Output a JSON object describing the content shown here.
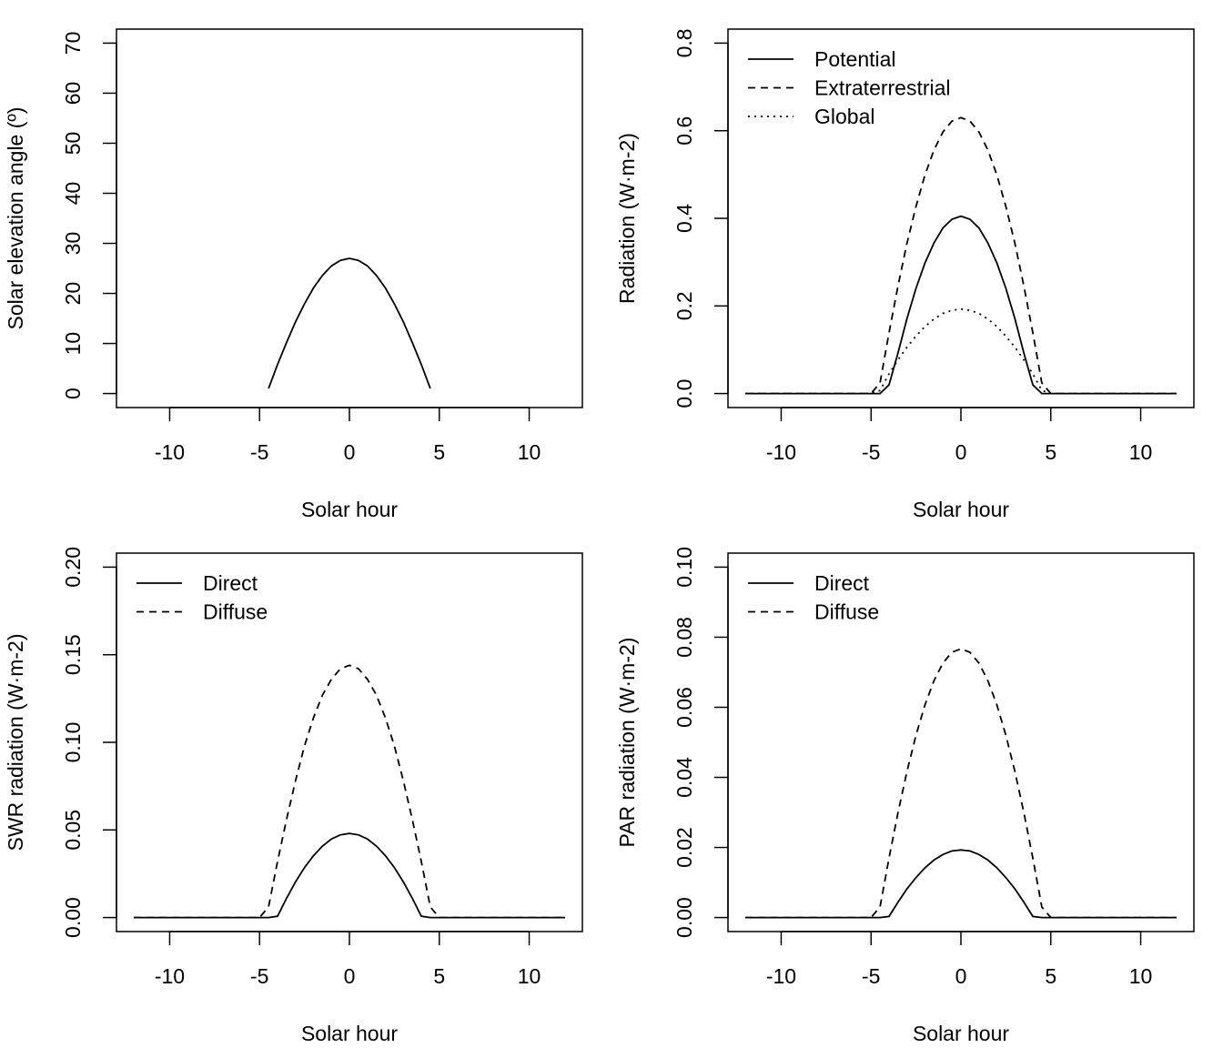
{
  "chart_data": [
    {
      "type": "line",
      "xlabel": "Solar hour",
      "ylabel": "Solar elevation angle (º)",
      "xlim": [
        -12,
        12
      ],
      "ylim": [
        0,
        70
      ],
      "xticks": [
        -10,
        -5,
        0,
        5,
        10
      ],
      "yticks": [
        0,
        10,
        20,
        30,
        40,
        50,
        60,
        70
      ],
      "ytick_labels": [
        "0",
        "10",
        "20",
        "30",
        "40",
        "50",
        "60",
        "70"
      ],
      "grid": false,
      "legend": null,
      "x": [
        -12,
        -5,
        -4.5,
        -4,
        -3.5,
        -3,
        -2.5,
        -2,
        -1.5,
        -1,
        -0.5,
        0,
        0.5,
        1,
        1.5,
        2,
        2.5,
        3,
        3.5,
        4,
        4.5,
        5,
        12
      ],
      "series": [
        {
          "style": "solid",
          "values": [
            null,
            null,
            1.0,
            5.8,
            10.2,
            14.3,
            17.9,
            21.1,
            23.6,
            25.5,
            26.6,
            27.0,
            26.6,
            25.5,
            23.6,
            21.1,
            17.9,
            14.3,
            10.2,
            5.8,
            1.0,
            null,
            null
          ]
        }
      ]
    },
    {
      "type": "line",
      "xlabel": "Solar hour",
      "ylabel": "Radiation (W·m-2)",
      "xlim": [
        -12,
        12
      ],
      "ylim": [
        0,
        0.8
      ],
      "xticks": [
        -10,
        -5,
        0,
        5,
        10
      ],
      "yticks": [
        0,
        0.2,
        0.4,
        0.6,
        0.8
      ],
      "ytick_labels": [
        "0.0",
        "0.2",
        "0.4",
        "0.6",
        "0.8"
      ],
      "grid": false,
      "legend": "top-left",
      "x": [
        -12,
        -5,
        -4.5,
        -4,
        -3.5,
        -3,
        -2.5,
        -2,
        -1.5,
        -1,
        -0.5,
        0,
        0.5,
        1,
        1.5,
        2,
        2.5,
        3,
        3.5,
        4,
        4.5,
        5,
        12
      ],
      "series": [
        {
          "name": "Potential",
          "style": "solid",
          "values": [
            0,
            0,
            0,
            0.02,
            0.093,
            0.171,
            0.24,
            0.298,
            0.344,
            0.378,
            0.398,
            0.405,
            0.398,
            0.378,
            0.344,
            0.298,
            0.24,
            0.171,
            0.093,
            0.02,
            0,
            0,
            0
          ]
        },
        {
          "name": "Extraterrestrial",
          "style": "dashed",
          "values": [
            0,
            0,
            0.024,
            0.139,
            0.246,
            0.343,
            0.427,
            0.499,
            0.556,
            0.597,
            0.622,
            0.63,
            0.622,
            0.597,
            0.556,
            0.499,
            0.427,
            0.343,
            0.246,
            0.139,
            0.024,
            0,
            0
          ]
        },
        {
          "name": "Global",
          "style": "dotted",
          "values": [
            0,
            0,
            0.007,
            0.045,
            0.077,
            0.106,
            0.131,
            0.153,
            0.17,
            0.183,
            0.19,
            0.193,
            0.19,
            0.183,
            0.17,
            0.153,
            0.131,
            0.106,
            0.077,
            0.045,
            0.007,
            0,
            0
          ]
        }
      ]
    },
    {
      "type": "line",
      "xlabel": "Solar hour",
      "ylabel": "SWR radiation (W·m-2)",
      "xlim": [
        -12,
        12
      ],
      "ylim": [
        0,
        0.2
      ],
      "xticks": [
        -10,
        -5,
        0,
        5,
        10
      ],
      "yticks": [
        0,
        0.05,
        0.1,
        0.15,
        0.2
      ],
      "ytick_labels": [
        "0.00",
        "0.05",
        "0.10",
        "0.15",
        "0.20"
      ],
      "grid": false,
      "legend": "top-left",
      "x": [
        -12,
        -5,
        -4.5,
        -4,
        -3.5,
        -3,
        -2.5,
        -2,
        -1.5,
        -1,
        -0.5,
        0,
        0.5,
        1,
        1.5,
        2,
        2.5,
        3,
        3.5,
        4,
        4.5,
        5,
        12
      ],
      "series": [
        {
          "name": "Direct",
          "style": "solid",
          "values": [
            0,
            0,
            0,
            0.0007,
            0.011,
            0.0203,
            0.0285,
            0.0353,
            0.0408,
            0.0448,
            0.0472,
            0.048,
            0.0472,
            0.0448,
            0.0408,
            0.0353,
            0.0285,
            0.0203,
            0.011,
            0.0007,
            0,
            0,
            0
          ]
        },
        {
          "name": "Diffuse",
          "style": "dashed",
          "values": [
            0,
            0,
            0.006,
            0.032,
            0.056,
            0.078,
            0.098,
            0.114,
            0.127,
            0.136,
            0.142,
            0.144,
            0.142,
            0.136,
            0.127,
            0.114,
            0.098,
            0.078,
            0.056,
            0.032,
            0.006,
            0,
            0
          ]
        }
      ]
    },
    {
      "type": "line",
      "xlabel": "Solar hour",
      "ylabel": "PAR radiation (W·m-2)",
      "xlim": [
        -12,
        12
      ],
      "ylim": [
        0,
        0.1
      ],
      "xticks": [
        -10,
        -5,
        0,
        5,
        10
      ],
      "yticks": [
        0,
        0.02,
        0.04,
        0.06,
        0.08,
        0.1
      ],
      "ytick_labels": [
        "0.00",
        "0.02",
        "0.04",
        "0.06",
        "0.08",
        "0.10"
      ],
      "grid": false,
      "legend": "top-left",
      "x": [
        -12,
        -5,
        -4.5,
        -4,
        -3.5,
        -3,
        -2.5,
        -2,
        -1.5,
        -1,
        -0.5,
        0,
        0.5,
        1,
        1.5,
        2,
        2.5,
        3,
        3.5,
        4,
        4.5,
        5,
        12
      ],
      "series": [
        {
          "name": "Direct",
          "style": "solid",
          "values": [
            0,
            0,
            0,
            0.0003,
            0.0044,
            0.0082,
            0.0114,
            0.0142,
            0.0164,
            0.018,
            0.019,
            0.0193,
            0.019,
            0.018,
            0.0164,
            0.0142,
            0.0114,
            0.0082,
            0.0044,
            0.0003,
            0,
            0,
            0
          ]
        },
        {
          "name": "Diffuse",
          "style": "dashed",
          "values": [
            0,
            0,
            0.003,
            0.017,
            0.03,
            0.0417,
            0.052,
            0.0607,
            0.0676,
            0.0726,
            0.0757,
            0.0767,
            0.0757,
            0.0726,
            0.0676,
            0.0607,
            0.052,
            0.0417,
            0.03,
            0.017,
            0.003,
            0,
            0
          ]
        }
      ]
    }
  ]
}
